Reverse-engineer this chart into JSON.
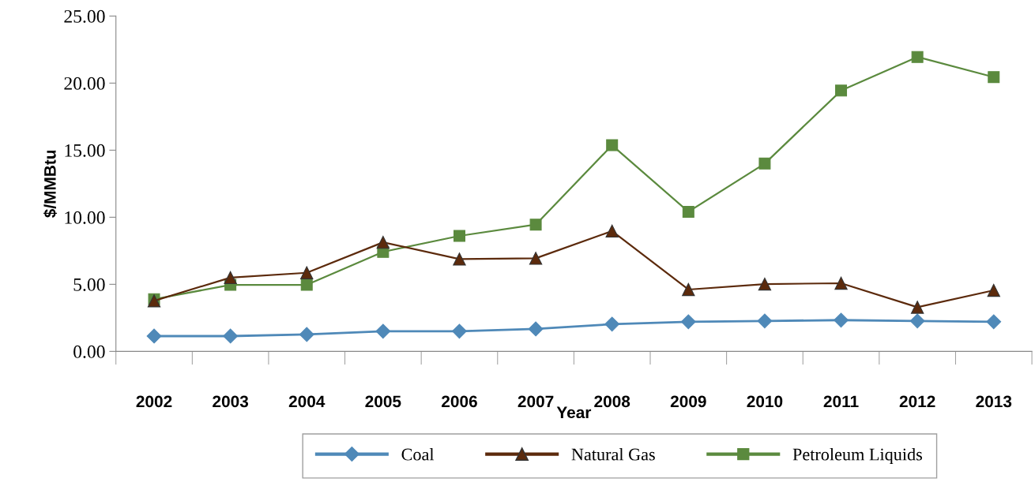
{
  "chart_data": {
    "type": "line",
    "xlabel": "Year",
    "ylabel": "$/MMBtu",
    "categories": [
      "2002",
      "2003",
      "2004",
      "2005",
      "2006",
      "2007",
      "2008",
      "2009",
      "2010",
      "2011",
      "2012",
      "2013"
    ],
    "series": [
      {
        "name": "Coal",
        "color": "#4f89b8",
        "marker": "diamond",
        "values": [
          1.14,
          1.14,
          1.26,
          1.5,
          1.5,
          1.67,
          2.03,
          2.21,
          2.27,
          2.33,
          2.27,
          2.21
        ]
      },
      {
        "name": "Natural Gas",
        "color": "#5c2a0c",
        "marker": "triangle",
        "values": [
          3.77,
          5.5,
          5.86,
          8.13,
          6.88,
          6.94,
          8.97,
          4.61,
          5.02,
          5.08,
          3.29,
          4.55
        ]
      },
      {
        "name": "Petroleum Liquids",
        "color": "#5b8a3e",
        "marker": "square",
        "values": [
          3.89,
          4.96,
          4.96,
          7.42,
          8.61,
          9.45,
          15.37,
          10.41,
          14.0,
          19.44,
          21.95,
          20.45
        ]
      }
    ],
    "ylim": [
      0,
      25
    ],
    "yticks": [
      {
        "value": 0,
        "label": "0.00"
      },
      {
        "value": 5,
        "label": "5.00"
      },
      {
        "value": 10,
        "label": "10.00"
      },
      {
        "value": 15,
        "label": "15.00"
      },
      {
        "value": 20,
        "label": "20.00"
      },
      {
        "value": 25,
        "label": "25.00"
      }
    ],
    "grid": false,
    "legend": "bottom",
    "line_style": "solid"
  }
}
